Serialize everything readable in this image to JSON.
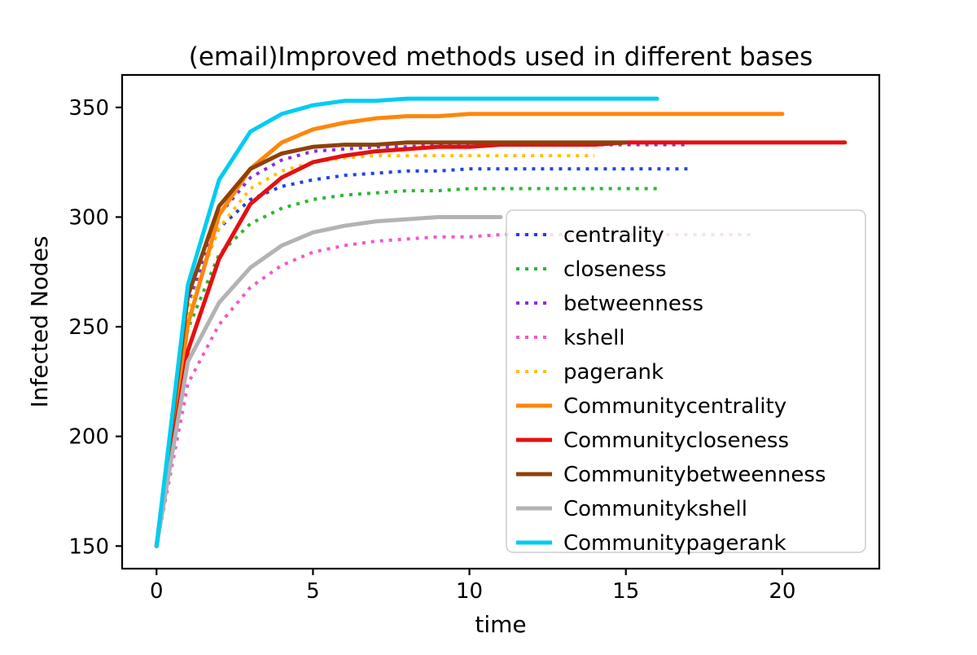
{
  "chart_data": {
    "type": "line",
    "title": "(email)Improved methods used in different bases",
    "xlabel": "time",
    "ylabel": "Infected Nodes",
    "xlim": [
      -1.1,
      23.1
    ],
    "ylim": [
      139.7,
      364.8
    ],
    "xticks": [
      0,
      5,
      10,
      15,
      20
    ],
    "yticks": [
      150,
      200,
      250,
      300,
      350
    ],
    "grid": false,
    "legend_position": "center-right inside axes",
    "frame_color": "#000000",
    "legend_border_color": "#cccccc",
    "series": [
      {
        "name": "centrality",
        "label": "centrality",
        "color": "#2041ee",
        "style": "dotted",
        "x_start": 0,
        "x_step": 1,
        "values": [
          150,
          260,
          295,
          308,
          314,
          317,
          319,
          320,
          321,
          321,
          322,
          322,
          322,
          322,
          322,
          322,
          322,
          322
        ]
      },
      {
        "name": "closeness",
        "label": "closeness",
        "color": "#27b82e",
        "style": "dotted",
        "x_start": 0,
        "x_step": 1,
        "values": [
          150,
          249,
          283,
          297,
          304,
          308,
          310,
          311,
          312,
          312,
          313,
          313,
          313,
          313,
          313,
          313,
          313
        ]
      },
      {
        "name": "betweenness",
        "label": "betweenness",
        "color": "#8b2be0",
        "style": "dotted",
        "x_start": 0,
        "x_step": 1,
        "values": [
          150,
          262,
          301,
          318,
          326,
          330,
          331,
          332,
          332,
          333,
          333,
          333,
          333,
          333,
          333,
          333,
          333,
          333
        ]
      },
      {
        "name": "kshell",
        "label": "kshell",
        "color": "#f556c8",
        "style": "dotted",
        "x_start": 0,
        "x_step": 1,
        "values": [
          150,
          224,
          251,
          268,
          278,
          284,
          287,
          289,
          290,
          291,
          291,
          292,
          292,
          292,
          292,
          292,
          292,
          292,
          292,
          292
        ]
      },
      {
        "name": "pagerank",
        "label": "pagerank",
        "color": "#ffc107",
        "style": "dotted",
        "x_start": 0,
        "x_step": 1,
        "values": [
          150,
          257,
          295,
          313,
          321,
          325,
          327,
          328,
          328,
          328,
          328,
          328,
          328,
          328,
          328
        ]
      },
      {
        "name": "Communitycentrality",
        "label": "Communitycentrality",
        "color": "#ff860b",
        "style": "solid",
        "x_start": 0,
        "x_step": 1,
        "values": [
          150,
          251,
          301,
          322,
          334,
          340,
          343,
          345,
          346,
          346,
          347,
          347,
          347,
          347,
          347,
          347,
          347,
          347,
          347,
          347,
          347
        ]
      },
      {
        "name": "Communitycloseness",
        "label": "Communitycloseness",
        "color": "#e51010",
        "style": "solid",
        "x_start": 0,
        "x_step": 1,
        "values": [
          150,
          239,
          281,
          306,
          318,
          325,
          328,
          330,
          331,
          332,
          332,
          333,
          333,
          333,
          333,
          334,
          334,
          334,
          334,
          334,
          334,
          334,
          334
        ]
      },
      {
        "name": "Communitybetweenness",
        "label": "Communitybetweenness",
        "color": "#8f4108",
        "style": "solid",
        "x_start": 0,
        "x_step": 1,
        "values": [
          150,
          264,
          305,
          322,
          329,
          332,
          333,
          333,
          334,
          334,
          334,
          334,
          334,
          334,
          334,
          334
        ]
      },
      {
        "name": "Communitykshell",
        "label": "Communitykshell",
        "color": "#b3b3b3",
        "style": "solid",
        "x_start": 0,
        "x_step": 1,
        "values": [
          150,
          234,
          261,
          277,
          287,
          293,
          296,
          298,
          299,
          300,
          300,
          300
        ]
      },
      {
        "name": "Communitypagerank",
        "label": "Communitypagerank",
        "color": "#00ccf2",
        "style": "solid",
        "x_start": 0,
        "x_step": 1,
        "values": [
          150,
          269,
          317,
          339,
          347,
          351,
          353,
          353,
          354,
          354,
          354,
          354,
          354,
          354,
          354,
          354,
          354
        ]
      }
    ]
  }
}
